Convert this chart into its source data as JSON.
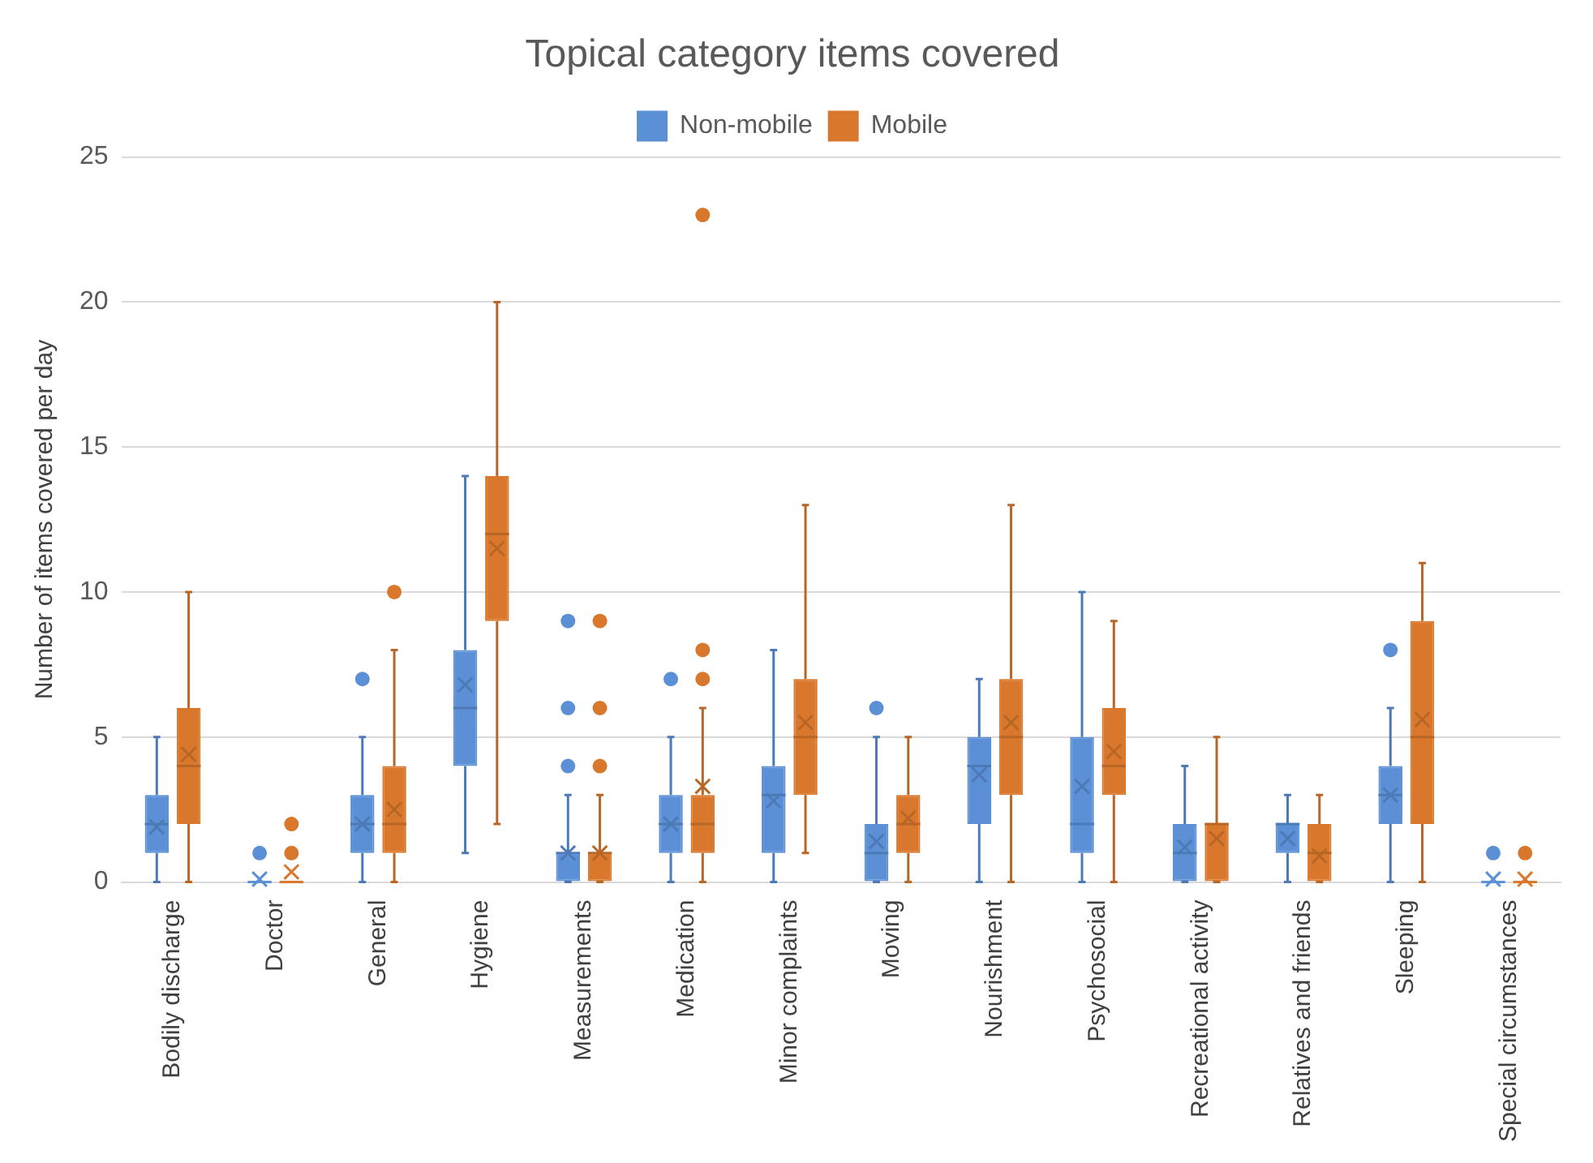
{
  "chart_data": {
    "type": "box",
    "title": "Topical category items covered",
    "ylabel": "Number of items covered per day",
    "categories": [
      "Bodily discharge",
      "Doctor",
      "General",
      "Hygiene",
      "Measurements",
      "Medication",
      "Minor complaints",
      "Moving",
      "Nourishment",
      "Psychosocial",
      "Recreational activity",
      "Relatives and friends",
      "Sleeping",
      "Special circumstances"
    ],
    "series": [
      {
        "name": "Non-mobile",
        "color": "#5b8fd6",
        "boxes": [
          {
            "low": 0,
            "q1": 1,
            "median": 2,
            "q3": 3,
            "high": 5,
            "mean": 1.9
          },
          {
            "low": 0,
            "q1": 0,
            "median": 0,
            "q3": 0,
            "high": 0,
            "mean": 0.1,
            "outliers": [
              1
            ]
          },
          {
            "low": 0,
            "q1": 1,
            "median": 2,
            "q3": 3,
            "high": 5,
            "mean": 2,
            "outliers": [
              7
            ]
          },
          {
            "low": 1,
            "q1": 4,
            "median": 6,
            "q3": 8,
            "high": 14,
            "mean": 6.8
          },
          {
            "low": 0,
            "q1": 0,
            "median": 1,
            "q3": 1,
            "high": 3,
            "mean": 1,
            "outliers": [
              4,
              6,
              9
            ]
          },
          {
            "low": 0,
            "q1": 1,
            "median": 2,
            "q3": 3,
            "high": 5,
            "mean": 2,
            "outliers": [
              7
            ]
          },
          {
            "low": 0,
            "q1": 1,
            "median": 3,
            "q3": 4,
            "high": 8,
            "mean": 2.8
          },
          {
            "low": 0,
            "q1": 0,
            "median": 1,
            "q3": 2,
            "high": 5,
            "mean": 1.4,
            "outliers": [
              6
            ]
          },
          {
            "low": 0,
            "q1": 2,
            "median": 4,
            "q3": 5,
            "high": 7,
            "mean": 3.7
          },
          {
            "low": 0,
            "q1": 1,
            "median": 2,
            "q3": 5,
            "high": 10,
            "mean": 3.3
          },
          {
            "low": 0,
            "q1": 0,
            "median": 1,
            "q3": 2,
            "high": 4,
            "mean": 1.2
          },
          {
            "low": 0,
            "q1": 1,
            "median": 2,
            "q3": 2,
            "high": 3,
            "mean": 1.5
          },
          {
            "low": 0,
            "q1": 2,
            "median": 3,
            "q3": 4,
            "high": 6,
            "mean": 3,
            "outliers": [
              8
            ]
          },
          {
            "low": 0,
            "q1": 0,
            "median": 0,
            "q3": 0,
            "high": 0,
            "mean": 0.1,
            "outliers": [
              1
            ]
          }
        ]
      },
      {
        "name": "Mobile",
        "color": "#d9782d",
        "boxes": [
          {
            "low": 0,
            "q1": 2,
            "median": 4,
            "q3": 6,
            "high": 10,
            "mean": 4.4
          },
          {
            "low": 0,
            "q1": 0,
            "median": 0,
            "q3": 0,
            "high": 0,
            "mean": 0.35,
            "outliers": [
              1,
              2
            ]
          },
          {
            "low": 0,
            "q1": 1,
            "median": 2,
            "q3": 4,
            "high": 8,
            "mean": 2.5,
            "outliers": [
              10
            ]
          },
          {
            "low": 2,
            "q1": 9,
            "median": 12,
            "q3": 14,
            "high": 20,
            "mean": 11.5
          },
          {
            "low": 0,
            "q1": 0,
            "median": 1,
            "q3": 1,
            "high": 3,
            "mean": 1,
            "outliers": [
              4,
              6,
              9
            ]
          },
          {
            "low": 0,
            "q1": 1,
            "median": 2,
            "q3": 3,
            "high": 6,
            "mean": 3.3,
            "outliers": [
              7,
              8,
              23
            ]
          },
          {
            "low": 1,
            "q1": 3,
            "median": 5,
            "q3": 7,
            "high": 13,
            "mean": 5.5
          },
          {
            "low": 0,
            "q1": 1,
            "median": 2,
            "q3": 3,
            "high": 5,
            "mean": 2.2
          },
          {
            "low": 0,
            "q1": 3,
            "median": 5,
            "q3": 7,
            "high": 13,
            "mean": 5.5
          },
          {
            "low": 0,
            "q1": 3,
            "median": 4,
            "q3": 6,
            "high": 9,
            "mean": 4.5
          },
          {
            "low": 0,
            "q1": 0,
            "median": 2,
            "q3": 2,
            "high": 5,
            "mean": 1.5
          },
          {
            "low": 0,
            "q1": 0,
            "median": 1,
            "q3": 2,
            "high": 3,
            "mean": 0.9
          },
          {
            "low": 0,
            "q1": 2,
            "median": 5,
            "q3": 9,
            "high": 11,
            "mean": 5.6
          },
          {
            "low": 0,
            "q1": 0,
            "median": 0,
            "q3": 0,
            "high": 0,
            "mean": 0.1,
            "outliers": [
              1
            ]
          }
        ]
      }
    ],
    "ylim": [
      0,
      25
    ],
    "yticks": [
      0,
      5,
      10,
      15,
      20,
      25
    ],
    "grid": "y",
    "legend": "top"
  }
}
